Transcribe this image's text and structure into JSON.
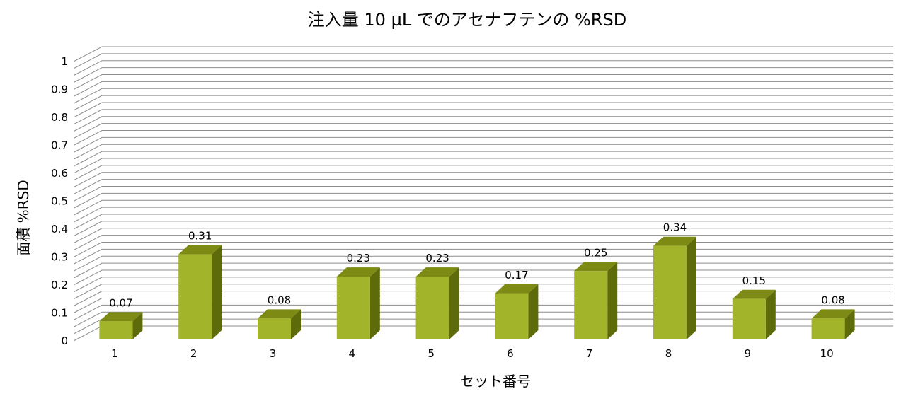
{
  "chart_data": {
    "type": "bar",
    "title": "注入量 10 µL でのアセナフテンの %RSD",
    "xlabel": "セット番号",
    "ylabel": "面積 %RSD",
    "categories": [
      "1",
      "2",
      "3",
      "4",
      "5",
      "6",
      "7",
      "8",
      "9",
      "10"
    ],
    "values": [
      0.07,
      0.31,
      0.08,
      0.23,
      0.23,
      0.17,
      0.25,
      0.34,
      0.15,
      0.08
    ],
    "data_labels": [
      "0.07",
      "0.31",
      "0.08",
      "0.23",
      "0.23",
      "0.17",
      "0.25",
      "0.34",
      "0.15",
      "0.08"
    ],
    "ylim": [
      0,
      1
    ],
    "yticks": [
      "0",
      "0.1",
      "0.2",
      "0.3",
      "0.4",
      "0.5",
      "0.6",
      "0.7",
      "0.8",
      "0.9",
      "1"
    ],
    "grid": true,
    "three_d": true,
    "colors": {
      "front": "#a2b42a",
      "top": "#7d8b15",
      "side": "#5e6b0a",
      "grid": "#8c8c8c"
    }
  }
}
